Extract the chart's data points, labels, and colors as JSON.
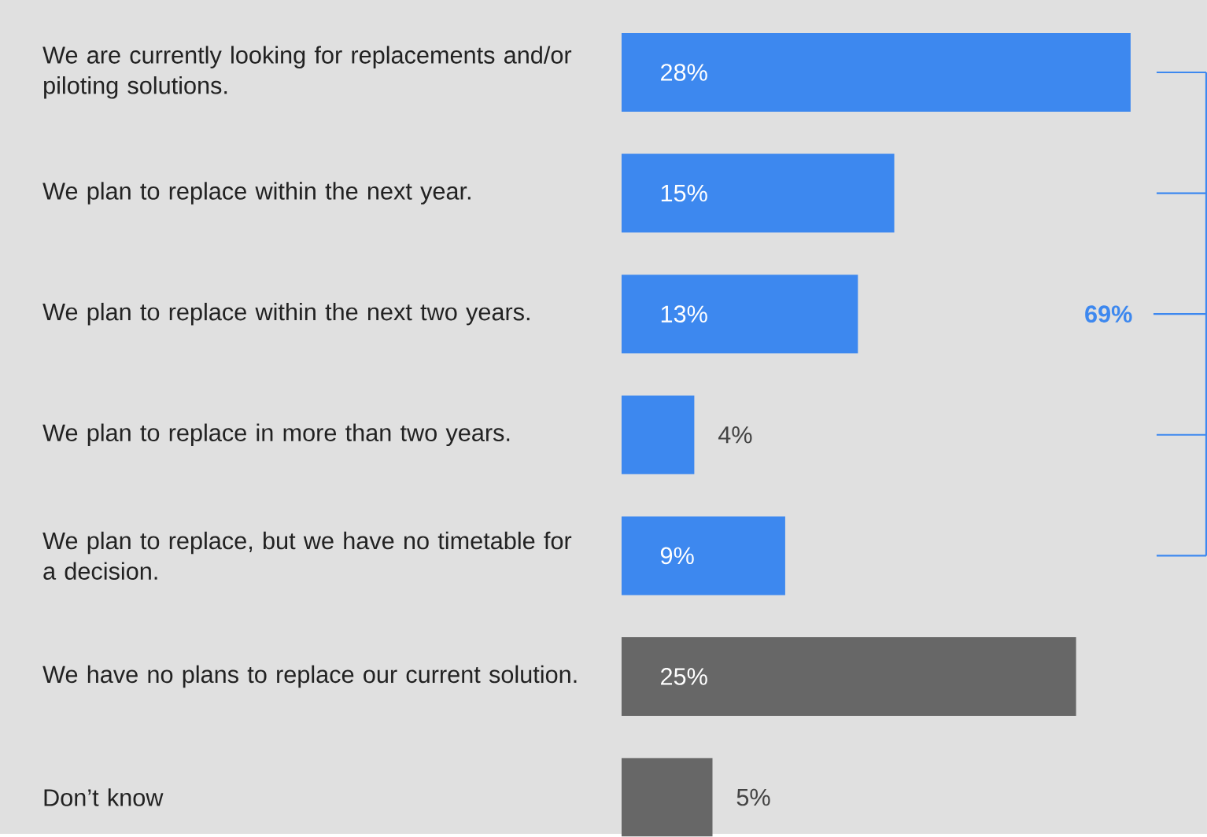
{
  "chart_data": {
    "type": "bar",
    "orientation": "horizontal",
    "categories": [
      "We are currently looking for replacements and/or piloting solutions.",
      "We plan to replace within the next year.",
      "We plan to replace within the next two years.",
      "We plan to replace in more than two years.",
      "We plan to replace, but we have no timetable for a decision.",
      "We have no plans to replace our current solution.",
      "Don’t know"
    ],
    "values": [
      28,
      15,
      13,
      4,
      9,
      25,
      5
    ],
    "value_labels": [
      "28%",
      "15%",
      "13%",
      "4%",
      "9%",
      "25%",
      "5%"
    ],
    "colors": [
      "#3d88ef",
      "#3d88ef",
      "#3d88ef",
      "#3d88ef",
      "#3d88ef",
      "#676767",
      "#676767"
    ],
    "annotations": [
      "69%"
    ]
  }
}
